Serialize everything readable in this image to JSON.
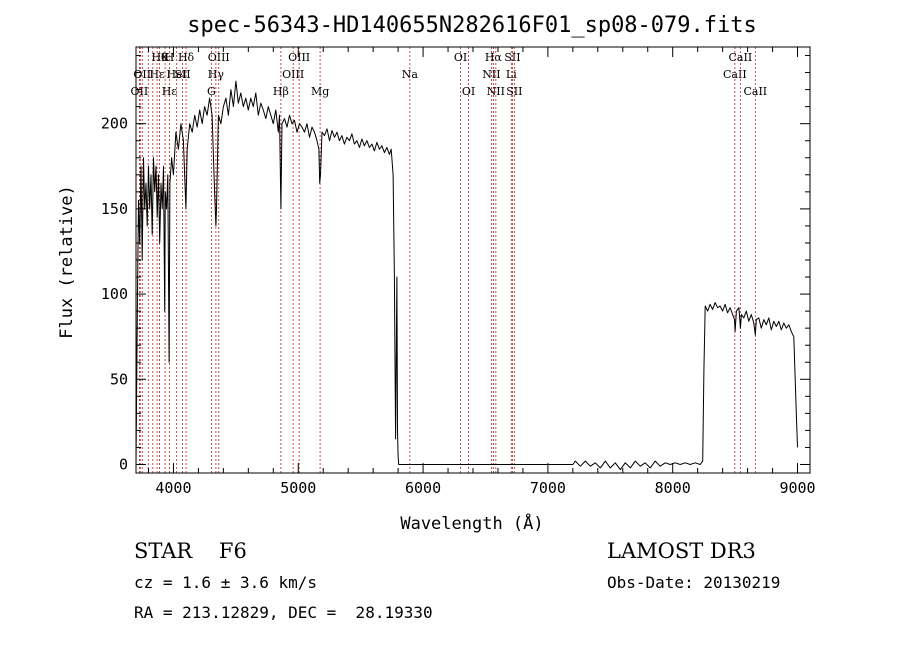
{
  "chart_data": {
    "type": "line",
    "title": "spec-56343-HD140655N282616F01_sp08-079.fits",
    "xlabel": "Wavelength (Å)",
    "ylabel": "Flux (relative)",
    "xlim": [
      3700,
      9100
    ],
    "ylim": [
      -5,
      245
    ],
    "xticks": [
      4000,
      5000,
      6000,
      7000,
      8000,
      9000
    ],
    "yticks": [
      0,
      50,
      100,
      150,
      200
    ],
    "grid": false,
    "series": [
      {
        "color": "#000000",
        "points": [
          [
            3700,
            0
          ],
          [
            3705,
            40
          ],
          [
            3712,
            100
          ],
          [
            3720,
            155
          ],
          [
            3730,
            130
          ],
          [
            3740,
            175
          ],
          [
            3750,
            120
          ],
          [
            3760,
            180
          ],
          [
            3770,
            150
          ],
          [
            3780,
            165
          ],
          [
            3790,
            140
          ],
          [
            3800,
            175
          ],
          [
            3810,
            150
          ],
          [
            3820,
            170
          ],
          [
            3830,
            135
          ],
          [
            3840,
            180
          ],
          [
            3850,
            160
          ],
          [
            3860,
            175
          ],
          [
            3870,
            145
          ],
          [
            3880,
            170
          ],
          [
            3890,
            130
          ],
          [
            3900,
            165
          ],
          [
            3910,
            150
          ],
          [
            3920,
            175
          ],
          [
            3930,
            90
          ],
          [
            3935,
            160
          ],
          [
            3945,
            150
          ],
          [
            3955,
            170
          ],
          [
            3965,
            60
          ],
          [
            3972,
            165
          ],
          [
            3985,
            180
          ],
          [
            4000,
            170
          ],
          [
            4020,
            195
          ],
          [
            4040,
            185
          ],
          [
            4060,
            200
          ],
          [
            4080,
            190
          ],
          [
            4100,
            150
          ],
          [
            4110,
            185
          ],
          [
            4130,
            200
          ],
          [
            4150,
            195
          ],
          [
            4170,
            205
          ],
          [
            4190,
            198
          ],
          [
            4210,
            208
          ],
          [
            4230,
            200
          ],
          [
            4250,
            210
          ],
          [
            4270,
            205
          ],
          [
            4290,
            215
          ],
          [
            4310,
            205
          ],
          [
            4330,
            160
          ],
          [
            4340,
            140
          ],
          [
            4345,
            150
          ],
          [
            4360,
            205
          ],
          [
            4380,
            200
          ],
          [
            4400,
            210
          ],
          [
            4420,
            215
          ],
          [
            4440,
            205
          ],
          [
            4460,
            220
          ],
          [
            4480,
            210
          ],
          [
            4500,
            225
          ],
          [
            4520,
            212
          ],
          [
            4540,
            218
          ],
          [
            4560,
            210
          ],
          [
            4580,
            215
          ],
          [
            4600,
            208
          ],
          [
            4620,
            215
          ],
          [
            4640,
            210
          ],
          [
            4660,
            218
          ],
          [
            4680,
            205
          ],
          [
            4700,
            212
          ],
          [
            4720,
            208
          ],
          [
            4740,
            203
          ],
          [
            4760,
            210
          ],
          [
            4780,
            205
          ],
          [
            4800,
            200
          ],
          [
            4820,
            208
          ],
          [
            4840,
            195
          ],
          [
            4850,
            205
          ],
          [
            4861,
            150
          ],
          [
            4870,
            200
          ],
          [
            4890,
            203
          ],
          [
            4910,
            198
          ],
          [
            4930,
            205
          ],
          [
            4950,
            200
          ],
          [
            4970,
            202
          ],
          [
            4990,
            195
          ],
          [
            5010,
            200
          ],
          [
            5030,
            198
          ],
          [
            5050,
            195
          ],
          [
            5070,
            200
          ],
          [
            5090,
            192
          ],
          [
            5110,
            198
          ],
          [
            5130,
            195
          ],
          [
            5150,
            190
          ],
          [
            5165,
            185
          ],
          [
            5172,
            165
          ],
          [
            5178,
            170
          ],
          [
            5190,
            195
          ],
          [
            5210,
            193
          ],
          [
            5230,
            197
          ],
          [
            5250,
            190
          ],
          [
            5270,
            196
          ],
          [
            5290,
            192
          ],
          [
            5310,
            195
          ],
          [
            5330,
            190
          ],
          [
            5350,
            193
          ],
          [
            5370,
            188
          ],
          [
            5390,
            192
          ],
          [
            5410,
            190
          ],
          [
            5430,
            194
          ],
          [
            5450,
            188
          ],
          [
            5470,
            190
          ],
          [
            5490,
            186
          ],
          [
            5510,
            191
          ],
          [
            5530,
            187
          ],
          [
            5550,
            190
          ],
          [
            5570,
            186
          ],
          [
            5590,
            188
          ],
          [
            5610,
            184
          ],
          [
            5630,
            189
          ],
          [
            5650,
            185
          ],
          [
            5670,
            187
          ],
          [
            5690,
            183
          ],
          [
            5710,
            186
          ],
          [
            5730,
            182
          ],
          [
            5745,
            185
          ],
          [
            5760,
            170
          ],
          [
            5770,
            110
          ],
          [
            5775,
            60
          ],
          [
            5780,
            15
          ],
          [
            5790,
            110
          ],
          [
            5795,
            20
          ],
          [
            5800,
            5
          ],
          [
            5805,
            0
          ],
          [
            5900,
            0
          ],
          [
            6000,
            0
          ],
          [
            6100,
            0
          ],
          [
            6200,
            0
          ],
          [
            6300,
            0
          ],
          [
            6400,
            0
          ],
          [
            6500,
            0
          ],
          [
            6600,
            0
          ],
          [
            6700,
            0
          ],
          [
            6800,
            0
          ],
          [
            6900,
            0
          ],
          [
            7000,
            0
          ],
          [
            7100,
            0
          ],
          [
            7200,
            0
          ],
          [
            7220,
            2
          ],
          [
            7260,
            -1
          ],
          [
            7300,
            2
          ],
          [
            7340,
            -1
          ],
          [
            7380,
            1
          ],
          [
            7420,
            -2
          ],
          [
            7460,
            2
          ],
          [
            7500,
            -2
          ],
          [
            7540,
            1
          ],
          [
            7580,
            -3
          ],
          [
            7620,
            1
          ],
          [
            7660,
            -2
          ],
          [
            7700,
            2
          ],
          [
            7740,
            -1
          ],
          [
            7780,
            1
          ],
          [
            7820,
            -2
          ],
          [
            7860,
            2
          ],
          [
            7900,
            -1
          ],
          [
            7940,
            1
          ],
          [
            7980,
            0
          ],
          [
            8020,
            1
          ],
          [
            8060,
            0
          ],
          [
            8100,
            1
          ],
          [
            8140,
            0
          ],
          [
            8180,
            1
          ],
          [
            8220,
            0
          ],
          [
            8240,
            2
          ],
          [
            8250,
            55
          ],
          [
            8260,
            93
          ],
          [
            8280,
            90
          ],
          [
            8300,
            94
          ],
          [
            8320,
            91
          ],
          [
            8340,
            95
          ],
          [
            8360,
            92
          ],
          [
            8380,
            93
          ],
          [
            8400,
            90
          ],
          [
            8420,
            94
          ],
          [
            8440,
            89
          ],
          [
            8460,
            92
          ],
          [
            8480,
            88
          ],
          [
            8495,
            85
          ],
          [
            8500,
            78
          ],
          [
            8510,
            90
          ],
          [
            8530,
            92
          ],
          [
            8542,
            80
          ],
          [
            8550,
            88
          ],
          [
            8570,
            86
          ],
          [
            8590,
            90
          ],
          [
            8610,
            84
          ],
          [
            8630,
            88
          ],
          [
            8650,
            83
          ],
          [
            8662,
            76
          ],
          [
            8670,
            85
          ],
          [
            8690,
            86
          ],
          [
            8710,
            80
          ],
          [
            8730,
            85
          ],
          [
            8750,
            82
          ],
          [
            8770,
            86
          ],
          [
            8790,
            79
          ],
          [
            8810,
            84
          ],
          [
            8830,
            81
          ],
          [
            8850,
            84
          ],
          [
            8870,
            79
          ],
          [
            8890,
            83
          ],
          [
            8910,
            80
          ],
          [
            8930,
            82
          ],
          [
            8950,
            78
          ],
          [
            8970,
            75
          ],
          [
            8990,
            30
          ],
          [
            9000,
            10
          ]
        ]
      }
    ],
    "lines": [
      {
        "x": 3727,
        "labels": [
          "OII"
        ],
        "rows": [
          3
        ]
      },
      {
        "x": 3734,
        "labels": [],
        "rows": []
      },
      {
        "x": 3750,
        "labels": [
          "OII"
        ],
        "rows": [
          2
        ]
      },
      {
        "x": 3798,
        "labels": [],
        "rows": []
      },
      {
        "x": 3835,
        "labels": [],
        "rows": []
      },
      {
        "x": 3869,
        "labels": [
          "Hε"
        ],
        "rows": [
          2
        ]
      },
      {
        "x": 3889,
        "labels": [
          "Hθ"
        ],
        "rows": [
          1
        ]
      },
      {
        "x": 3933,
        "labels": [
          "K"
        ],
        "rows": [
          1
        ]
      },
      {
        "x": 3968,
        "labels": [
          "H",
          "Hε"
        ],
        "rows": [
          1,
          3
        ]
      },
      {
        "x": 4026,
        "labels": [
          "HeI"
        ],
        "rows": [
          2
        ]
      },
      {
        "x": 4072,
        "labels": [
          "SII"
        ],
        "rows": [
          2
        ]
      },
      {
        "x": 4101,
        "labels": [
          "Hδ"
        ],
        "rows": [
          1
        ]
      },
      {
        "x": 4304,
        "labels": [
          "G"
        ],
        "rows": [
          3
        ]
      },
      {
        "x": 4340,
        "labels": [
          "Hγ"
        ],
        "rows": [
          2
        ]
      },
      {
        "x": 4363,
        "labels": [
          "OIII"
        ],
        "rows": [
          1
        ]
      },
      {
        "x": 4861,
        "labels": [
          "Hβ"
        ],
        "rows": [
          3
        ]
      },
      {
        "x": 4959,
        "labels": [
          "OIII"
        ],
        "rows": [
          2
        ]
      },
      {
        "x": 5007,
        "labels": [
          "OIII"
        ],
        "rows": [
          1
        ]
      },
      {
        "x": 5175,
        "labels": [
          "Mg"
        ],
        "rows": [
          3
        ]
      },
      {
        "x": 5894,
        "labels": [
          "Na"
        ],
        "rows": [
          2
        ]
      },
      {
        "x": 6300,
        "labels": [
          "OI"
        ],
        "rows": [
          1
        ]
      },
      {
        "x": 6364,
        "labels": [
          "OI"
        ],
        "rows": [
          3
        ]
      },
      {
        "x": 6548,
        "labels": [
          "NII"
        ],
        "rows": [
          2
        ]
      },
      {
        "x": 6563,
        "labels": [
          "Hα"
        ],
        "rows": [
          1
        ]
      },
      {
        "x": 6583,
        "labels": [
          "NII"
        ],
        "rows": [
          3
        ]
      },
      {
        "x": 6707,
        "labels": [
          "Li"
        ],
        "rows": [
          2
        ]
      },
      {
        "x": 6716,
        "labels": [
          "SII"
        ],
        "rows": [
          1
        ]
      },
      {
        "x": 6731,
        "labels": [
          "SII"
        ],
        "rows": [
          3
        ]
      },
      {
        "x": 8498,
        "labels": [
          "CaII"
        ],
        "rows": [
          2
        ]
      },
      {
        "x": 8542,
        "labels": [
          "CaII"
        ],
        "rows": [
          1
        ]
      },
      {
        "x": 8662,
        "labels": [
          "CaII"
        ],
        "rows": [
          3
        ]
      }
    ]
  },
  "info": {
    "object": "STAR    F6",
    "cz": "cz = 1.6 ± 3.6 km/s",
    "radec": "RA = 213.12829, DEC =  28.19330",
    "survey": "LAMOST DR3",
    "obsdate": "Obs-Date: 20130219"
  },
  "colors": {
    "spectrum": "#000000",
    "line_marker": "#b22222",
    "axes": "#000000",
    "background": "#ffffff"
  }
}
